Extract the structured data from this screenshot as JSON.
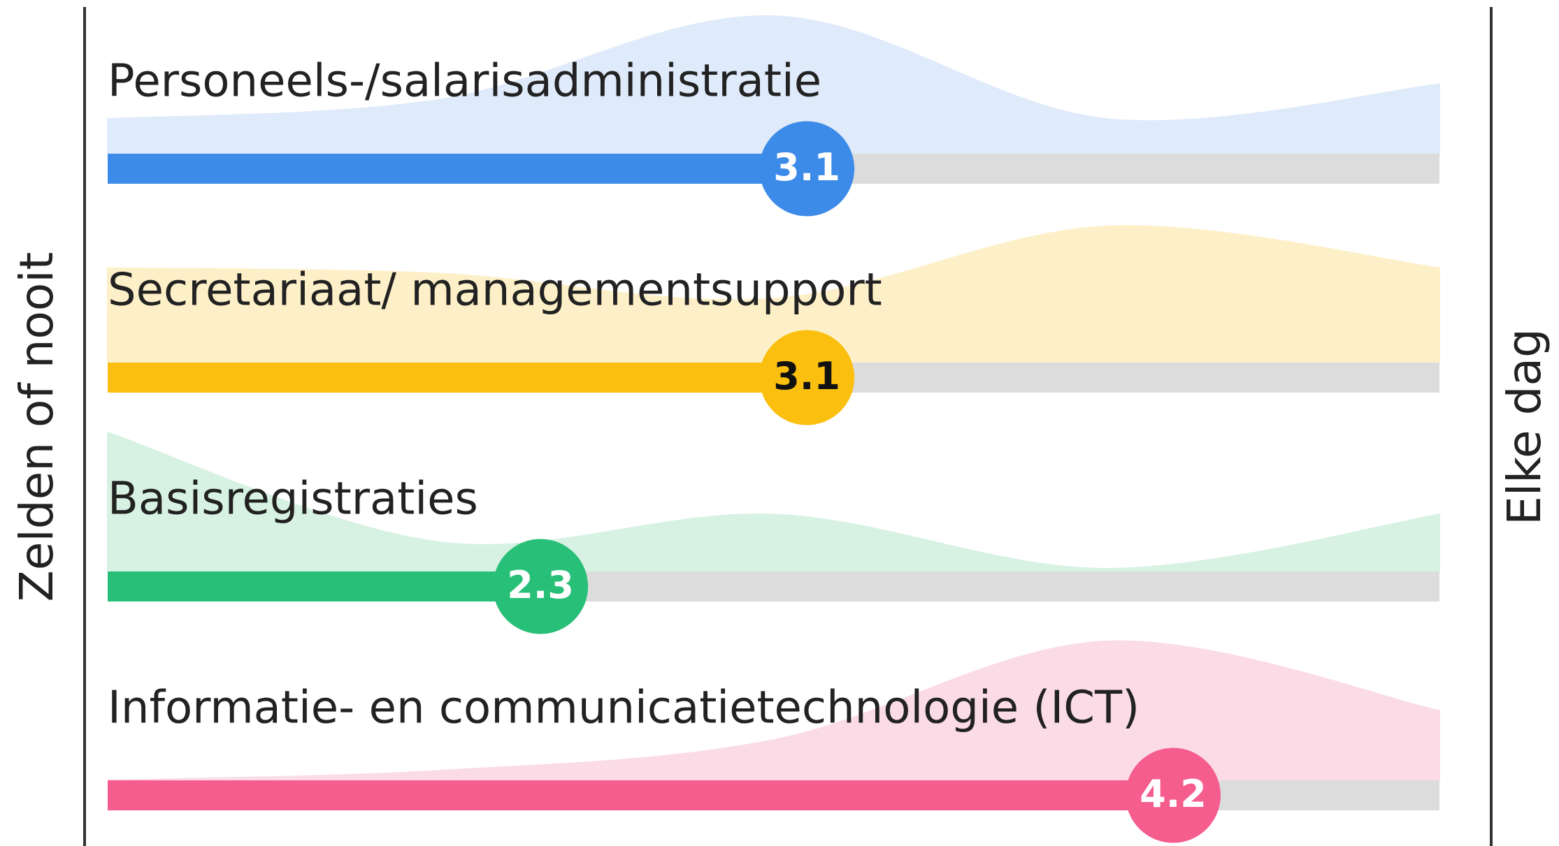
{
  "chart_data": {
    "type": "rating",
    "left_label": "Zelden of nooit",
    "right_label": "Elke dag",
    "xlim": [
      1,
      5
    ],
    "distribution_x": [
      1,
      2,
      3,
      4,
      5
    ],
    "distribution_lim": [
      0,
      100
    ],
    "track_color": "#dcdcdc",
    "series": [
      {
        "name": "Personeels-/salarisadministratie",
        "value": 3.1,
        "color": "#3d8be8",
        "area_color": "#dfeafa",
        "text_color": "#ffffff",
        "distribution": [
          25,
          39,
          99,
          25,
          50
        ]
      },
      {
        "name": "Secretariaat/ managementsupport",
        "value": 3.1,
        "color": "#fbbf0f",
        "area_color": "#fdf0c8",
        "text_color": "#111111",
        "distribution": [
          68,
          64,
          46,
          98,
          68
        ]
      },
      {
        "name": "Basisregistraties",
        "value": 2.3,
        "color": "#28c078",
        "area_color": "#d7f2e3",
        "text_color": "#ffffff",
        "distribution": [
          100,
          21,
          41,
          2,
          41
        ]
      },
      {
        "name": "Informatie- en communicatietechnologie (ICT)",
        "value": 4.2,
        "color": "#f55d8e",
        "area_color": "#fbdbe5",
        "text_color": "#ffffff",
        "distribution": [
          0,
          7,
          29,
          100,
          50
        ]
      }
    ]
  }
}
